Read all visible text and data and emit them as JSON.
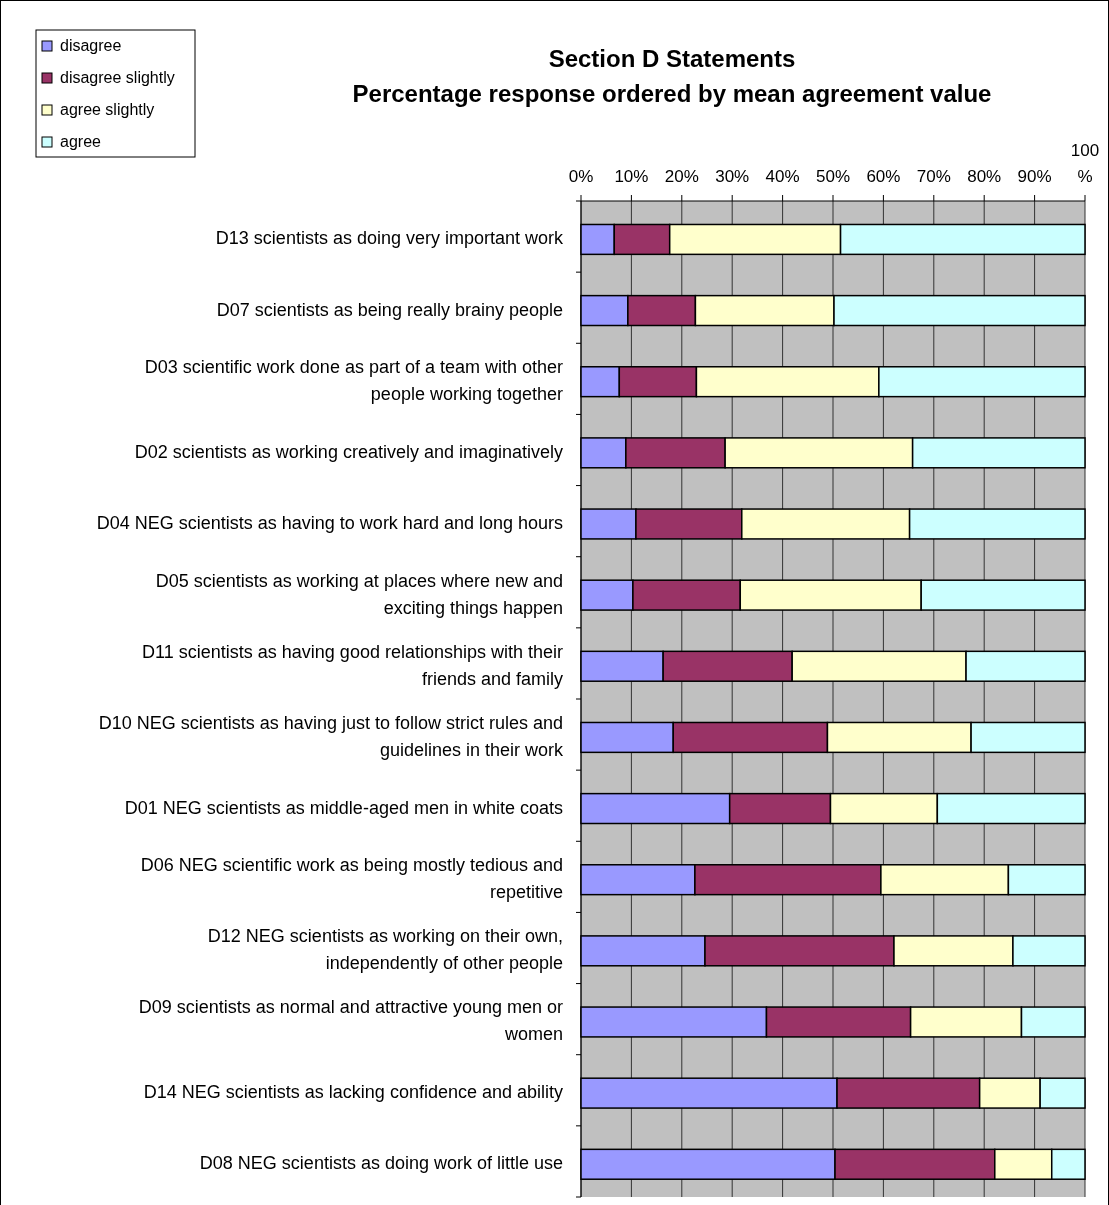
{
  "chart_data": {
    "type": "bar",
    "orientation": "horizontal",
    "stacked": true,
    "title": "Section D Statements",
    "subtitle": "Percentage response ordered by mean agreement value",
    "categories": [
      "D13 scientists as doing very important work",
      "D07 scientists as being really brainy people",
      "D03 scientific work done as part of a team with other people working together",
      "D02 scientists as working creatively and imaginatively",
      "D04 NEG scientists as having to work hard and long hours",
      "D05 scientists as working at places where new and exciting things happen",
      "D11 scientists as having good relationships with their friends and family",
      "D10 NEG scientists as having just to follow strict rules and guidelines in their work",
      "D01 NEG scientists as middle-aged men in white coats",
      "D06 NEG scientific work as being mostly tedious and repetitive",
      "D12 NEG scientists as working on their own, independently of other people",
      "D09 scientists as normal and attractive young men or women",
      "D14 NEG scientists as lacking confidence and ability",
      "D08 NEG scientists as doing work of little use"
    ],
    "series": [
      {
        "name": "disagree",
        "color": "#9999ff",
        "values": [
          6.6,
          9.3,
          7.6,
          8.9,
          10.9,
          10.3,
          16.3,
          18.3,
          29.5,
          22.6,
          24.6,
          36.8,
          50.8,
          50.4
        ]
      },
      {
        "name": "disagree slightly",
        "color": "#993366",
        "values": [
          11.0,
          13.4,
          15.3,
          19.7,
          21.0,
          21.3,
          25.6,
          30.6,
          20.0,
          36.9,
          37.5,
          28.6,
          28.3,
          31.7
        ]
      },
      {
        "name": "agree slightly",
        "color": "#ffffcc",
        "values": [
          33.9,
          27.5,
          36.2,
          37.2,
          33.3,
          35.9,
          34.5,
          28.5,
          21.2,
          25.3,
          23.6,
          22.0,
          12.0,
          11.3
        ]
      },
      {
        "name": "agree",
        "color": "#ccffff",
        "values": [
          48.5,
          49.8,
          40.9,
          34.2,
          34.8,
          32.5,
          23.6,
          22.6,
          29.3,
          15.2,
          14.3,
          12.6,
          8.9,
          6.6
        ]
      }
    ],
    "xlim": [
      0,
      100
    ],
    "xticks": [
      {
        "value": 0,
        "label": "0%"
      },
      {
        "value": 10,
        "label": "10%"
      },
      {
        "value": 20,
        "label": "20%"
      },
      {
        "value": 30,
        "label": "30%"
      },
      {
        "value": 40,
        "label": "40%"
      },
      {
        "value": 50,
        "label": "50%"
      },
      {
        "value": 60,
        "label": "60%"
      },
      {
        "value": 70,
        "label": "70%"
      },
      {
        "value": 80,
        "label": "80%"
      },
      {
        "value": 90,
        "label": "90%"
      },
      {
        "value": 100,
        "label": "100 %"
      }
    ],
    "grid": "x",
    "legend": "top left"
  }
}
